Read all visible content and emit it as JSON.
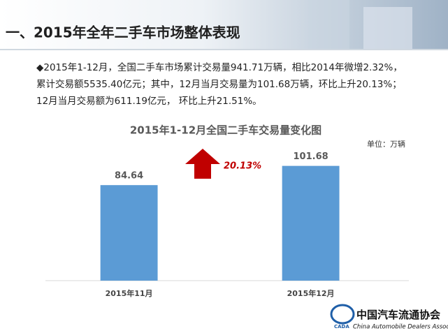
{
  "header": {
    "title": "一、2015年全年二手车市场整体表现"
  },
  "paragraph": [
    "◆2015年1-12月，全国二手车市场累计交易量941.71万辆，相比2014年微增2.32%，",
    "累计交易额5535.40亿元；其中，12月当月交易量为101.68万辆，环比上升20.13%；",
    "12月当月交易额为611.19亿元， 环比上升21.51%。"
  ],
  "chart_data": {
    "type": "bar",
    "title": "2015年1-12月全国二手车交易量变化图",
    "unit": "单位：万辆",
    "categories": [
      "2015年11月",
      "2015年12月"
    ],
    "values": [
      84.64,
      101.68
    ],
    "color": "#5b9bd5",
    "ylim": [
      0,
      120
    ],
    "annotation": "20.13%"
  },
  "logo": {
    "name": "中国汽车流通协会",
    "abbr": "CADA",
    "english": "China Automobile Dealers Association"
  }
}
